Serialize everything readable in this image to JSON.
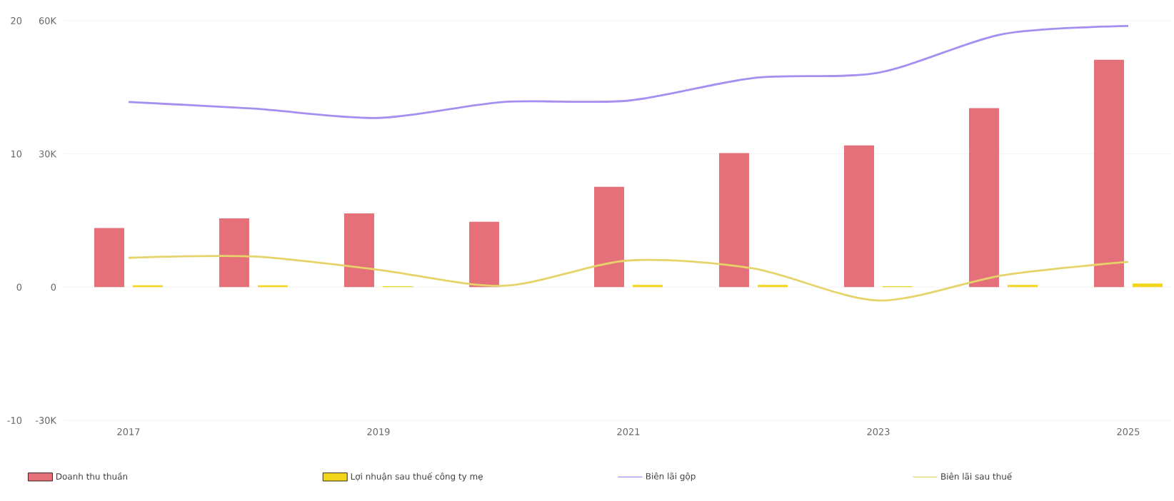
{
  "chart_data": {
    "type": "bar",
    "categories": [
      "2017",
      null,
      "2019",
      null,
      "2021",
      null,
      "2023",
      null,
      "2025"
    ],
    "series": [
      {
        "name": "Doanh thu thuần",
        "color": "#e5707a",
        "values": [
          13300,
          15500,
          16600,
          14700,
          22600,
          30200,
          31900,
          40300,
          51200
        ]
      },
      {
        "name": "Lợi nhuận sau thuế công ty mẹ",
        "color": "#f2d61c",
        "values": [
          400,
          400,
          200,
          null,
          500,
          500,
          200,
          500,
          800
        ]
      },
      {
        "name": "Biên lãi gộp",
        "type": "line",
        "axis": "y2",
        "color": "#a58ff0",
        "values": [
          13.9,
          13.4,
          12.7,
          13.9,
          14.0,
          15.7,
          16.1,
          19.0,
          19.6
        ]
      },
      {
        "name": "Biên lãi sau thuế",
        "type": "line",
        "axis": "y2",
        "color": "#e6d46a",
        "values": [
          2.2,
          2.3,
          1.3,
          0.1,
          2.0,
          1.4,
          -1.0,
          0.9,
          1.9
        ]
      }
    ],
    "ylim": [
      -30000,
      60000
    ],
    "yticks": [
      {
        "value": -30000,
        "label": "-30K"
      },
      0,
      {
        "value": 30000,
        "label": "30K"
      },
      {
        "value": 60000,
        "label": "60K"
      }
    ],
    "y2lim": [
      -10,
      20
    ],
    "y2ticks": [
      -10,
      0,
      10,
      20
    ],
    "grid": "y",
    "legend": "bottom",
    "line_style": "solid"
  }
}
